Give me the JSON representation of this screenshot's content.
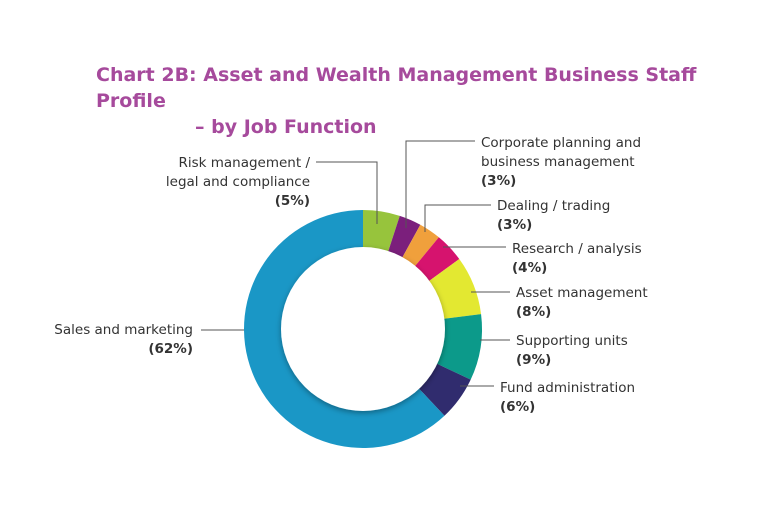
{
  "chart_data": {
    "type": "pie",
    "title_line1": "Chart 2B: Asset and Wealth Management Business Staff Profile",
    "title_line2": "– by Job Function",
    "slices": [
      {
        "label": "Risk management /",
        "label2": "legal and compliance",
        "value": 5,
        "pct_text": "(5%)",
        "color": "#97c43c"
      },
      {
        "label": "Corporate planning and",
        "label2": "business management",
        "value": 3,
        "pct_text": "(3%)",
        "color": "#7b1f7c"
      },
      {
        "label": "Dealing / trading",
        "label2": "",
        "value": 3,
        "pct_text": "(3%)",
        "color": "#f0a03c"
      },
      {
        "label": "Research / analysis",
        "label2": "",
        "value": 4,
        "pct_text": "(4%)",
        "color": "#d6136e"
      },
      {
        "label": "Asset management",
        "label2": "",
        "value": 8,
        "pct_text": "(8%)",
        "color": "#e3e831"
      },
      {
        "label": "Supporting units",
        "label2": "",
        "value": 9,
        "pct_text": "(9%)",
        "color": "#0c9a8a"
      },
      {
        "label": "Fund administration",
        "label2": "",
        "value": 6,
        "pct_text": "(6%)",
        "color": "#302c6e"
      },
      {
        "label": "Sales and marketing",
        "label2": "",
        "value": 62,
        "pct_text": "(62%)",
        "color": "#1a97c6"
      }
    ]
  }
}
